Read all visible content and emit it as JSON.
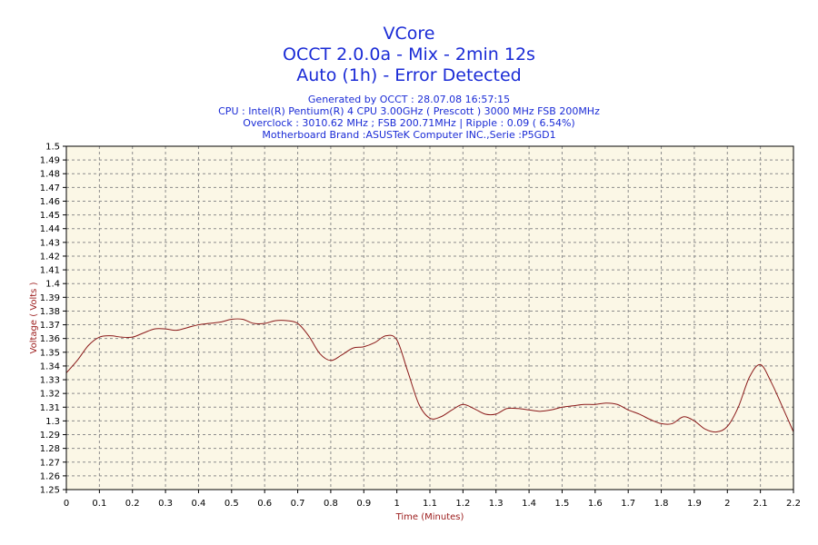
{
  "header": {
    "title_lines": [
      "VCore",
      "OCCT 2.0.0a - Mix - 2min 12s",
      "Auto (1h) - Error Detected"
    ],
    "info_lines": [
      "Generated by OCCT : 28.07.08 16:57:15",
      "CPU : Intel(R) Pentium(R) 4 CPU 3.00GHz ( Prescott ) 3000 MHz FSB 200MHz",
      "Overclock : 3010.62 MHz ; FSB 200.71MHz | Ripple : 0.09 ( 6.54%)",
      "Motherboard Brand :ASUSTeK Computer INC.,Serie :P5GD1"
    ]
  },
  "colors": {
    "plot_background": "#fbf7e6",
    "line": "#8b1a1a",
    "grid": "#8c8c8c",
    "title": "#1a2bd6",
    "axis_label": "#9b1a1a"
  },
  "chart_data": {
    "type": "line",
    "title": "VCore",
    "xlabel": "Time (Minutes)",
    "ylabel": "Voltage ( Volts )",
    "xlim": [
      0,
      2.2
    ],
    "ylim": [
      1.25,
      1.5
    ],
    "grid": true,
    "x_ticks": [
      "0",
      "0.1",
      "0.2",
      "0.3",
      "0.4",
      "0.5",
      "0.6",
      "0.7",
      "0.8",
      "0.9",
      "1",
      "1.1",
      "1.2",
      "1.3",
      "1.4",
      "1.5",
      "1.6",
      "1.7",
      "1.8",
      "1.9",
      "2",
      "2.1",
      "2.2"
    ],
    "y_ticks": [
      "1.25",
      "1.26",
      "1.27",
      "1.28",
      "1.29",
      "1.3",
      "1.31",
      "1.32",
      "1.33",
      "1.34",
      "1.35",
      "1.36",
      "1.37",
      "1.38",
      "1.39",
      "1.4",
      "1.41",
      "1.42",
      "1.43",
      "1.44",
      "1.45",
      "1.46",
      "1.47",
      "1.48",
      "1.49",
      "1.5"
    ],
    "series": [
      {
        "x": [
          0,
          0.033,
          0.067,
          0.1,
          0.133,
          0.167,
          0.2,
          0.233,
          0.267,
          0.3,
          0.333,
          0.367,
          0.4,
          0.433,
          0.467,
          0.5,
          0.533,
          0.567,
          0.6,
          0.633,
          0.667,
          0.7,
          0.733,
          0.767,
          0.8,
          0.833,
          0.867,
          0.9,
          0.933,
          0.967,
          1.0,
          1.033,
          1.067,
          1.1,
          1.133,
          1.167,
          1.2,
          1.233,
          1.267,
          1.3,
          1.333,
          1.367,
          1.4,
          1.433,
          1.467,
          1.5,
          1.533,
          1.567,
          1.6,
          1.633,
          1.667,
          1.7,
          1.733,
          1.767,
          1.8,
          1.833,
          1.867,
          1.9,
          1.933,
          1.967,
          2.0,
          2.033,
          2.067,
          2.1,
          2.133,
          2.167,
          2.2
        ],
        "values": [
          1.335,
          1.344,
          1.355,
          1.361,
          1.362,
          1.361,
          1.361,
          1.364,
          1.367,
          1.367,
          1.366,
          1.368,
          1.37,
          1.371,
          1.372,
          1.374,
          1.374,
          1.371,
          1.371,
          1.373,
          1.373,
          1.371,
          1.362,
          1.349,
          1.344,
          1.348,
          1.353,
          1.354,
          1.357,
          1.362,
          1.359,
          1.336,
          1.312,
          1.302,
          1.303,
          1.308,
          1.312,
          1.309,
          1.305,
          1.305,
          1.309,
          1.309,
          1.308,
          1.307,
          1.308,
          1.31,
          1.311,
          1.312,
          1.312,
          1.313,
          1.312,
          1.308,
          1.305,
          1.301,
          1.298,
          1.298,
          1.303,
          1.3,
          1.294,
          1.292,
          1.296,
          1.31,
          1.332,
          1.341,
          1.328,
          1.31,
          1.292
        ]
      }
    ]
  }
}
